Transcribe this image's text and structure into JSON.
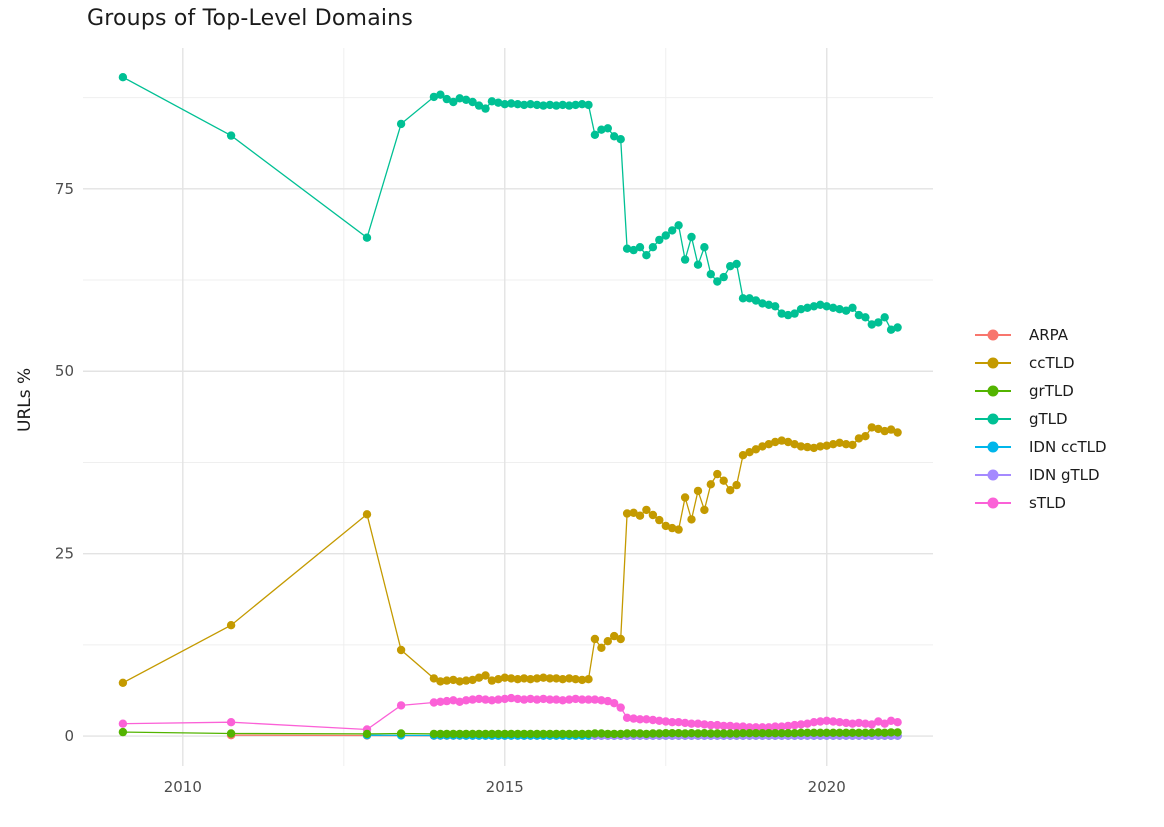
{
  "chart_data": {
    "type": "line",
    "title": "Groups of Top-Level Domains",
    "x_axis": {
      "ticks": [
        2010,
        2015,
        2020
      ],
      "minor": [
        2012.5,
        2017.5
      ],
      "domain": [
        2008.45,
        2021.65
      ]
    },
    "y_axis": {
      "label": "URLs %",
      "ticks": [
        0,
        25,
        50,
        75
      ],
      "minor": [
        12.5,
        37.5,
        62.5,
        87.5
      ],
      "domain": [
        -4.1,
        94.3
      ]
    },
    "grid": "on",
    "legend_position": "right",
    "point_radius": 4.2,
    "line_width": 1.3,
    "x_dense": [
      2013.9,
      2014.0,
      2014.1,
      2014.2,
      2014.3,
      2014.4,
      2014.5,
      2014.6,
      2014.7,
      2014.8,
      2014.9,
      2015.0,
      2015.1,
      2015.2,
      2015.3,
      2015.4,
      2015.5,
      2015.6,
      2015.7,
      2015.8,
      2015.9,
      2016.0,
      2016.1,
      2016.2,
      2016.3,
      2016.4,
      2016.5,
      2016.6,
      2016.7,
      2016.8,
      2016.9,
      2017.0,
      2017.1,
      2017.2,
      2017.3,
      2017.4,
      2017.5,
      2017.6,
      2017.7,
      2017.8,
      2017.9,
      2018.0,
      2018.1,
      2018.2,
      2018.3,
      2018.4,
      2018.5,
      2018.6,
      2018.7,
      2018.8,
      2018.9,
      2019.0,
      2019.1,
      2019.2,
      2019.3,
      2019.4,
      2019.5,
      2019.6,
      2019.7,
      2019.8,
      2019.9,
      2020.0,
      2020.1,
      2020.2,
      2020.3,
      2020.4,
      2020.5,
      2020.6,
      2020.7,
      2020.8,
      2020.9,
      2021.0,
      2021.1
    ],
    "draw_order": [
      "ARPA",
      "IDN ccTLD",
      "IDN gTLD",
      "sTLD",
      "ccTLD",
      "gTLD",
      "grTLD"
    ],
    "series": [
      {
        "name": "ARPA",
        "color": "#F8766D",
        "x_sparse": [
          2010.75,
          2012.86
        ],
        "v_sparse": [
          0.12,
          0.08
        ],
        "dense_offset": 0,
        "v_dense": [
          0.05,
          0.05,
          0.05,
          0.05,
          0.05,
          0.05,
          0.05,
          0.05,
          0.05,
          0.05,
          0.05,
          0.05,
          0.05,
          0.05,
          0.05,
          0.05,
          0.05,
          0.05,
          0.05,
          0.05,
          0.05,
          0.05,
          0.05,
          0.05,
          0.05,
          0.05,
          0.05,
          0.05,
          0.05,
          0.05,
          0.05,
          0.05,
          0.05,
          0.05,
          0.05,
          0.05,
          0.05,
          0.05,
          0.05,
          0.05,
          0.05,
          0.05,
          0.05,
          0.05,
          0.05,
          0.05,
          0.05,
          0.05,
          0.05,
          0.05,
          0.05,
          0.05,
          0.05,
          0.05,
          0.05,
          0.05,
          0.05,
          0.05,
          0.05,
          0.05,
          0.05,
          0.05,
          0.05,
          0.05,
          0.05,
          0.05,
          0.05,
          0.05,
          0.05,
          0.05,
          0.05,
          0.05,
          0.05
        ]
      },
      {
        "name": "ccTLD",
        "color": "#C49A00",
        "x_sparse": [
          2009.07,
          2010.75,
          2012.86,
          2013.39
        ],
        "v_sparse": [
          7.3,
          15.2,
          30.4,
          11.8
        ],
        "dense_offset": 0,
        "v_dense": [
          7.9,
          7.5,
          7.6,
          7.7,
          7.5,
          7.6,
          7.7,
          8.0,
          8.3,
          7.6,
          7.8,
          8.0,
          7.9,
          7.8,
          7.9,
          7.8,
          7.9,
          8.0,
          7.9,
          7.9,
          7.8,
          7.9,
          7.8,
          7.7,
          7.8,
          13.3,
          12.1,
          13.0,
          13.7,
          13.3,
          30.5,
          30.6,
          30.2,
          31.0,
          30.3,
          29.6,
          28.8,
          28.5,
          28.3,
          32.7,
          29.7,
          33.6,
          31.0,
          34.5,
          35.9,
          35.0,
          33.7,
          34.4,
          38.5,
          38.9,
          39.3,
          39.7,
          40.0,
          40.3,
          40.5,
          40.3,
          40.0,
          39.7,
          39.6,
          39.5,
          39.7,
          39.8,
          40.0,
          40.2,
          40.0,
          39.9,
          40.8,
          41.1,
          42.3,
          42.1,
          41.8,
          42.0,
          41.6
        ]
      },
      {
        "name": "grTLD",
        "color": "#53B400",
        "x_sparse": [
          2009.07,
          2010.75,
          2012.86,
          2013.39
        ],
        "v_sparse": [
          0.55,
          0.35,
          0.3,
          0.35
        ],
        "dense_offset": 0,
        "v_dense": [
          0.3,
          0.3,
          0.3,
          0.3,
          0.3,
          0.3,
          0.3,
          0.3,
          0.3,
          0.3,
          0.3,
          0.3,
          0.3,
          0.3,
          0.3,
          0.3,
          0.3,
          0.3,
          0.3,
          0.3,
          0.3,
          0.3,
          0.3,
          0.3,
          0.3,
          0.35,
          0.35,
          0.3,
          0.3,
          0.3,
          0.35,
          0.35,
          0.35,
          0.3,
          0.35,
          0.35,
          0.4,
          0.4,
          0.4,
          0.35,
          0.4,
          0.35,
          0.4,
          0.35,
          0.35,
          0.35,
          0.35,
          0.35,
          0.4,
          0.4,
          0.4,
          0.4,
          0.4,
          0.4,
          0.4,
          0.4,
          0.4,
          0.45,
          0.45,
          0.45,
          0.45,
          0.45,
          0.45,
          0.45,
          0.45,
          0.45,
          0.45,
          0.45,
          0.45,
          0.5,
          0.45,
          0.5,
          0.5
        ]
      },
      {
        "name": "gTLD",
        "color": "#00C094",
        "x_sparse": [
          2009.07,
          2010.75,
          2012.86,
          2013.39
        ],
        "v_sparse": [
          90.3,
          82.3,
          68.3,
          83.9
        ],
        "dense_offset": 0,
        "v_dense": [
          87.6,
          87.9,
          87.3,
          86.9,
          87.4,
          87.2,
          86.9,
          86.4,
          86.0,
          87.0,
          86.8,
          86.6,
          86.7,
          86.6,
          86.5,
          86.6,
          86.5,
          86.4,
          86.5,
          86.4,
          86.5,
          86.4,
          86.5,
          86.6,
          86.5,
          82.4,
          83.1,
          83.3,
          82.2,
          81.8,
          66.8,
          66.6,
          67.0,
          65.9,
          67.0,
          68.0,
          68.6,
          69.3,
          70.0,
          65.3,
          68.4,
          64.6,
          67.0,
          63.3,
          62.3,
          62.9,
          64.4,
          64.7,
          60.0,
          60.0,
          59.7,
          59.3,
          59.1,
          58.9,
          57.9,
          57.7,
          57.9,
          58.5,
          58.7,
          58.9,
          59.1,
          58.9,
          58.7,
          58.5,
          58.3,
          58.7,
          57.7,
          57.4,
          56.4,
          56.7,
          57.4,
          55.7,
          56.0
        ]
      },
      {
        "name": "IDN ccTLD",
        "color": "#00B6EB",
        "x_sparse": [
          2012.86,
          2013.39
        ],
        "v_sparse": [
          0.12,
          0.1
        ],
        "dense_offset": 0,
        "v_dense": [
          0.08,
          0.08,
          0.08,
          0.08,
          0.08,
          0.05,
          0.05,
          0.05,
          0.05,
          0.05,
          0.05,
          0.05,
          0.05,
          0.05,
          0.05,
          0.05,
          0.05,
          0.05,
          0.05,
          0.05,
          0.05,
          0.05,
          0.05,
          0.05,
          0.05,
          0.05,
          0.05,
          0.05,
          0.05,
          0.05,
          0.05,
          0.05,
          0.05,
          0.05,
          0.05,
          0.05,
          0.05,
          0.05,
          0.05,
          0.05,
          0.05,
          0.05,
          0.05,
          0.05,
          0.05,
          0.05,
          0.05,
          0.05,
          0.05,
          0.05,
          0.05,
          0.05,
          0.05,
          0.05,
          0.05,
          0.05,
          0.05,
          0.05,
          0.05,
          0.05,
          0.05,
          0.05,
          0.05,
          0.05,
          0.05,
          0.05,
          0.05,
          0.05,
          0.05,
          0.05,
          0.05,
          0.05,
          0.05
        ]
      },
      {
        "name": "IDN gTLD",
        "color": "#A58AFF",
        "x_sparse": [],
        "v_sparse": [],
        "dense_offset": 25,
        "v_dense": [
          0.05,
          0.05,
          0.05,
          0.05,
          0.05,
          0.05,
          0.05,
          0.05,
          0.05,
          0.05,
          0.05,
          0.05,
          0.05,
          0.05,
          0.05,
          0.05,
          0.05,
          0.05,
          0.05,
          0.05,
          0.05,
          0.05,
          0.05,
          0.05,
          0.05,
          0.05,
          0.05,
          0.05,
          0.05,
          0.05,
          0.05,
          0.05,
          0.05,
          0.05,
          0.05,
          0.05,
          0.05,
          0.05,
          0.05,
          0.05,
          0.05,
          0.05,
          0.05,
          0.05,
          0.05,
          0.05,
          0.05,
          0.05
        ]
      },
      {
        "name": "sTLD",
        "color": "#FB61D7",
        "x_sparse": [
          2009.07,
          2010.75,
          2012.86,
          2013.39
        ],
        "v_sparse": [
          1.7,
          1.9,
          0.9,
          4.2
        ],
        "dense_offset": 0,
        "v_dense": [
          4.6,
          4.7,
          4.8,
          4.9,
          4.7,
          4.9,
          5.0,
          5.1,
          5.0,
          4.9,
          5.0,
          5.1,
          5.2,
          5.1,
          5.0,
          5.1,
          5.0,
          5.1,
          5.0,
          5.0,
          4.9,
          5.0,
          5.1,
          5.0,
          5.0,
          5.0,
          4.9,
          4.8,
          4.5,
          3.9,
          2.5,
          2.4,
          2.3,
          2.3,
          2.2,
          2.1,
          2.0,
          1.9,
          1.9,
          1.8,
          1.7,
          1.7,
          1.6,
          1.5,
          1.5,
          1.4,
          1.4,
          1.3,
          1.3,
          1.2,
          1.2,
          1.2,
          1.2,
          1.3,
          1.3,
          1.4,
          1.5,
          1.6,
          1.7,
          1.9,
          2.0,
          2.1,
          2.0,
          1.9,
          1.8,
          1.7,
          1.8,
          1.7,
          1.6,
          2.0,
          1.7,
          2.1,
          1.9
        ]
      }
    ],
    "colors": {
      "grid_major": "#E3E3E3",
      "grid_minor": "#EFEFEF",
      "tick_text": "#4d4d4d",
      "title_text": "#1b1b1b"
    }
  }
}
